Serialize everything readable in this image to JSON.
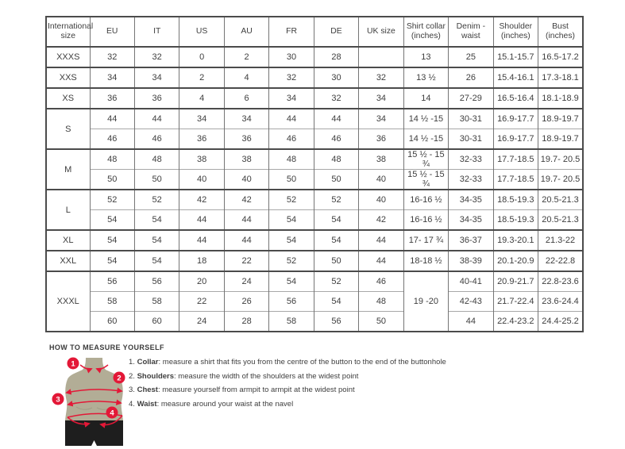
{
  "colors": {
    "accent_red": "#e31837",
    "mannequin_body": "#b2ad96",
    "mannequin_shorts": "#1e1e1e",
    "border_dark": "#4b4b4b",
    "border_light": "#a8a8a8",
    "text": "#3e3e3e"
  },
  "size_table": {
    "headers": [
      "International size",
      "EU",
      "IT",
      "US",
      "AU",
      "FR",
      "DE",
      "UK size",
      "Shirt collar (inches)",
      "Denim - waist",
      "Shoulder (inches)",
      "Bust (inches)"
    ],
    "rows": [
      [
        "XXXS",
        "32",
        "32",
        "0",
        "2",
        "30",
        "28",
        "",
        "13",
        "25",
        "15.1-15.7",
        "16.5-17.2"
      ],
      [
        "XXS",
        "34",
        "34",
        "2",
        "4",
        "32",
        "30",
        "32",
        "13 ½",
        "26",
        "15.4-16.1",
        "17.3-18.1"
      ],
      [
        "XS",
        "36",
        "36",
        "4",
        "6",
        "34",
        "32",
        "34",
        "14",
        "27-29",
        "16.5-16.4",
        "18.1-18.9"
      ],
      [
        {
          "t": "S",
          "rs": 2
        },
        "44",
        "44",
        "34",
        "34",
        "44",
        "44",
        "34",
        "14 ½ -15",
        "30-31",
        "16.9-17.7",
        "18.9-19.7"
      ],
      [
        "46",
        "46",
        "36",
        "36",
        "46",
        "46",
        "36",
        "14 ½ -15",
        "30-31",
        "16.9-17.7",
        "18.9-19.7"
      ],
      [
        {
          "t": "M",
          "rs": 2
        },
        "48",
        "48",
        "38",
        "38",
        "48",
        "48",
        "38",
        "15 ½ - 15 ¾",
        "32-33",
        "17.7-18.5",
        "19.7- 20.5"
      ],
      [
        "50",
        "50",
        "40",
        "40",
        "50",
        "50",
        "40",
        "15 ½ - 15 ¾",
        "32-33",
        "17.7-18.5",
        "19.7- 20.5"
      ],
      [
        {
          "t": "L",
          "rs": 2
        },
        "52",
        "52",
        "42",
        "42",
        "52",
        "52",
        "40",
        "16-16 ½",
        "34-35",
        "18.5-19.3",
        "20.5-21.3"
      ],
      [
        "54",
        "54",
        "44",
        "44",
        "54",
        "54",
        "42",
        "16-16 ½",
        "34-35",
        "18.5-19.3",
        "20.5-21.3"
      ],
      [
        "XL",
        "54",
        "54",
        "44",
        "44",
        "54",
        "54",
        "44",
        "17- 17 ¾",
        "36-37",
        "19.3-20.1",
        "21.3-22"
      ],
      [
        "XXL",
        "54",
        "54",
        "18",
        "22",
        "52",
        "50",
        "44",
        "18-18 ½",
        "38-39",
        "20.1-20.9",
        "22-22.8"
      ],
      [
        {
          "t": "XXXL",
          "rs": 3
        },
        "56",
        "56",
        "20",
        "24",
        "54",
        "52",
        "46",
        {
          "t": "19 -20",
          "rs": 3
        },
        "40-41",
        "20.9-21.7",
        "22.8-23.6"
      ],
      [
        "58",
        "58",
        "22",
        "26",
        "56",
        "54",
        "48",
        "42-43",
        "21.7-22.4",
        "23.6-24.4"
      ],
      [
        "60",
        "60",
        "24",
        "28",
        "58",
        "56",
        "50",
        "44",
        "22.4-23.2",
        "24.4-25.2"
      ]
    ]
  },
  "measure": {
    "heading": "HOW TO MEASURE YOURSELF",
    "markers": [
      "1",
      "2",
      "3",
      "4"
    ],
    "items": [
      {
        "num": "1.",
        "term": "Collar",
        "text": ": measure a shirt that fits you from the centre of the button to the end of the buttonhole"
      },
      {
        "num": "2.",
        "term": "Shoulders",
        "text": ": measure the width of the shoulders at the widest point"
      },
      {
        "num": "3.",
        "term": "Chest",
        "text": ": measure yourself from armpit to armpit at the widest point"
      },
      {
        "num": "4.",
        "term": "Waist",
        "text": ": measure around your waist at the navel"
      }
    ]
  }
}
